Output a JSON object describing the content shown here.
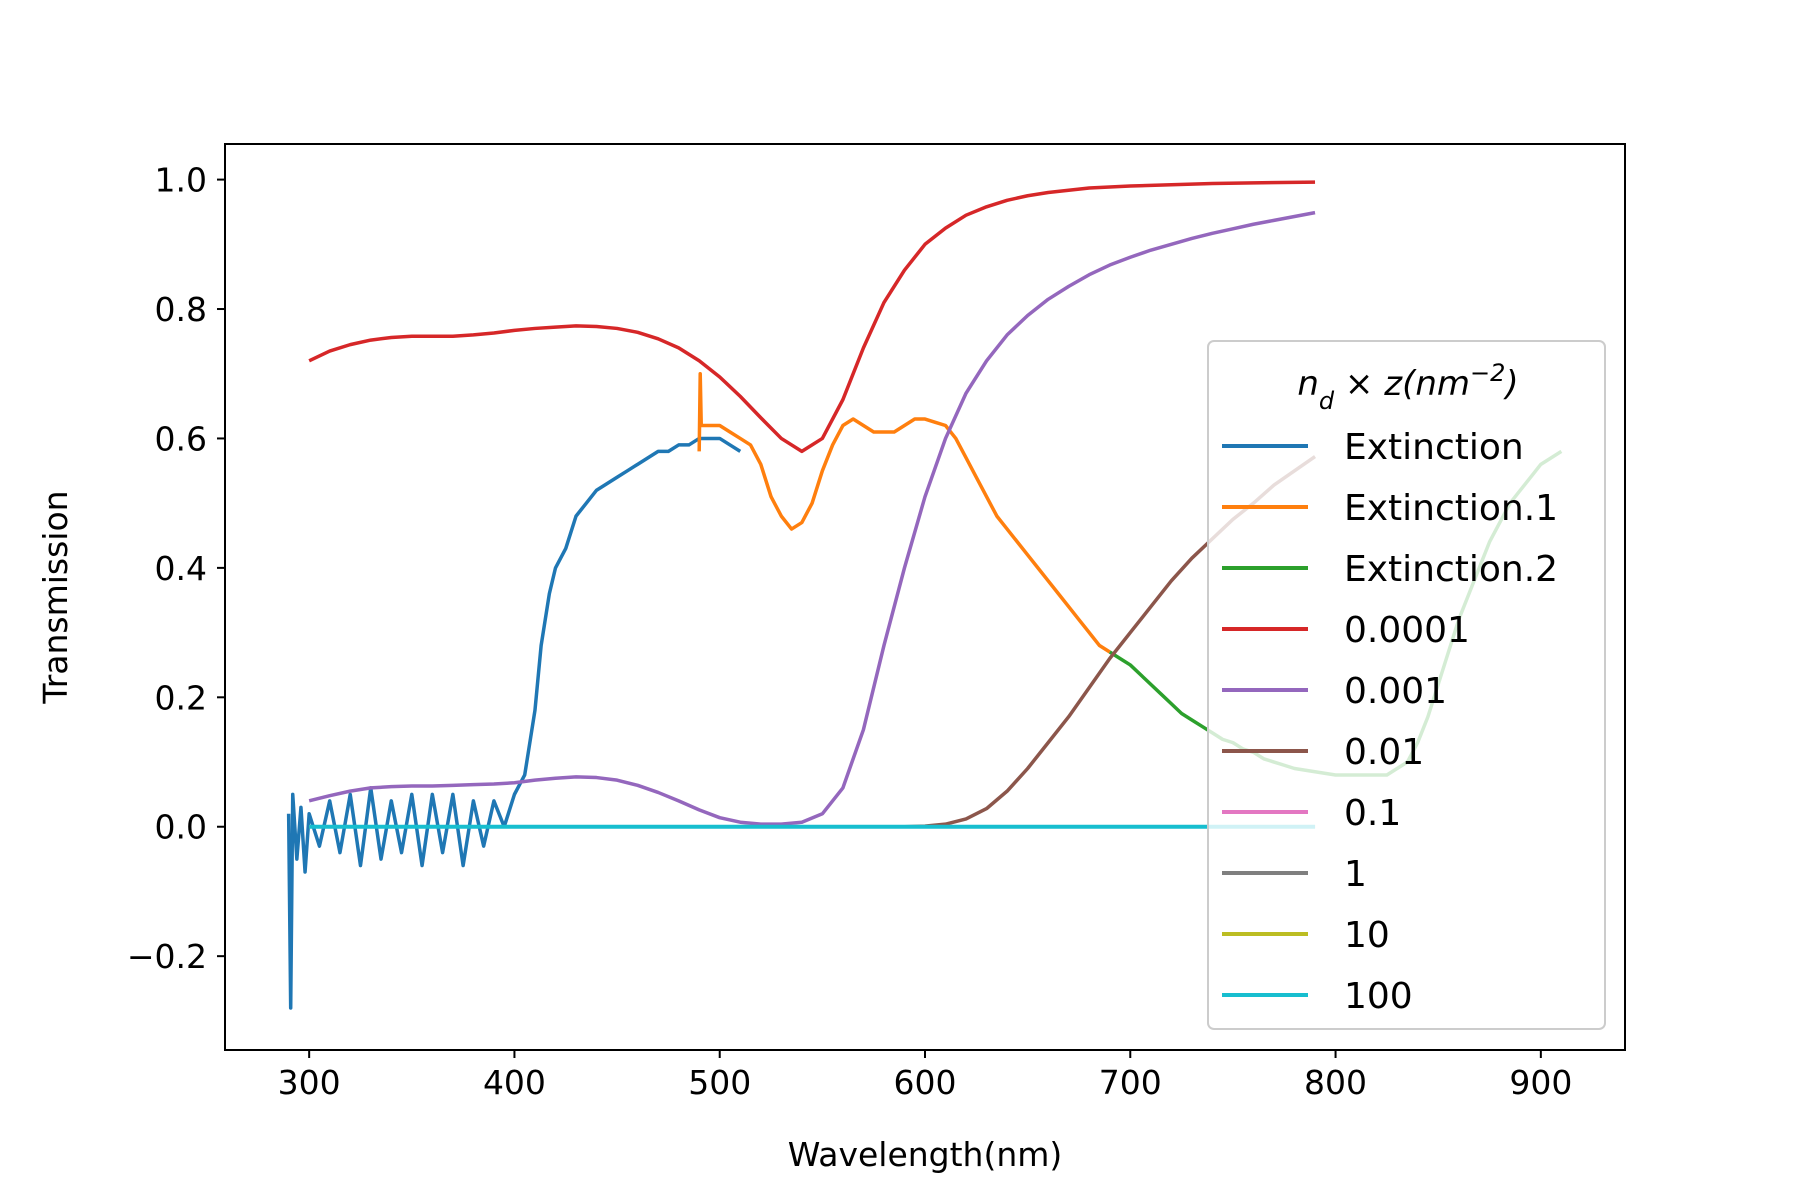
{
  "chart_data": {
    "type": "line",
    "title": "",
    "xlabel": "Wavelength(nm)",
    "ylabel": "Transmission",
    "xlim": [
      259,
      941
    ],
    "ylim": [
      -0.345,
      1.055
    ],
    "grid": false,
    "legend": {
      "title": "n_d × z(nm^-2)",
      "placement": "right"
    },
    "x_ticks": [
      {
        "value": 300,
        "label": "300"
      },
      {
        "value": 400,
        "label": "400"
      },
      {
        "value": 500,
        "label": "500"
      },
      {
        "value": 600,
        "label": "600"
      },
      {
        "value": 700,
        "label": "700"
      },
      {
        "value": 800,
        "label": "800"
      },
      {
        "value": 900,
        "label": "900"
      }
    ],
    "y_ticks": [
      {
        "value": -0.2,
        "label": "−0.2"
      },
      {
        "value": 0.0,
        "label": "0.0"
      },
      {
        "value": 0.2,
        "label": "0.2"
      },
      {
        "value": 0.4,
        "label": "0.4"
      },
      {
        "value": 0.6,
        "label": "0.6"
      },
      {
        "value": 0.8,
        "label": "0.8"
      },
      {
        "value": 1.0,
        "label": "1.0"
      }
    ],
    "series": [
      {
        "name": "Extinction",
        "color": "#1f77b4",
        "points": [
          [
            290,
            0.02
          ],
          [
            291,
            -0.28
          ],
          [
            292,
            0.05
          ],
          [
            294,
            -0.05
          ],
          [
            296,
            0.03
          ],
          [
            298,
            -0.07
          ],
          [
            300,
            0.02
          ],
          [
            305,
            -0.03
          ],
          [
            310,
            0.04
          ],
          [
            315,
            -0.04
          ],
          [
            320,
            0.05
          ],
          [
            325,
            -0.06
          ],
          [
            330,
            0.06
          ],
          [
            335,
            -0.05
          ],
          [
            340,
            0.04
          ],
          [
            345,
            -0.04
          ],
          [
            350,
            0.05
          ],
          [
            355,
            -0.06
          ],
          [
            360,
            0.05
          ],
          [
            365,
            -0.04
          ],
          [
            370,
            0.05
          ],
          [
            375,
            -0.06
          ],
          [
            380,
            0.04
          ],
          [
            385,
            -0.03
          ],
          [
            390,
            0.04
          ],
          [
            395,
            0.0
          ],
          [
            400,
            0.05
          ],
          [
            405,
            0.08
          ],
          [
            410,
            0.18
          ],
          [
            413,
            0.28
          ],
          [
            417,
            0.36
          ],
          [
            420,
            0.4
          ],
          [
            425,
            0.43
          ],
          [
            430,
            0.48
          ],
          [
            435,
            0.5
          ],
          [
            440,
            0.52
          ],
          [
            445,
            0.53
          ],
          [
            450,
            0.54
          ],
          [
            455,
            0.55
          ],
          [
            460,
            0.56
          ],
          [
            465,
            0.57
          ],
          [
            470,
            0.58
          ],
          [
            475,
            0.58
          ],
          [
            480,
            0.59
          ],
          [
            485,
            0.59
          ],
          [
            490,
            0.6
          ],
          [
            495,
            0.6
          ],
          [
            500,
            0.6
          ],
          [
            505,
            0.59
          ],
          [
            510,
            0.58
          ]
        ]
      },
      {
        "name": "Extinction.1",
        "color": "#ff7f0e",
        "points": [
          [
            490,
            0.58
          ],
          [
            490.5,
            0.7
          ],
          [
            491,
            0.62
          ],
          [
            495,
            0.62
          ],
          [
            500,
            0.62
          ],
          [
            505,
            0.61
          ],
          [
            510,
            0.6
          ],
          [
            515,
            0.59
          ],
          [
            520,
            0.56
          ],
          [
            525,
            0.51
          ],
          [
            530,
            0.48
          ],
          [
            535,
            0.46
          ],
          [
            540,
            0.47
          ],
          [
            545,
            0.5
          ],
          [
            550,
            0.55
          ],
          [
            555,
            0.59
          ],
          [
            560,
            0.62
          ],
          [
            565,
            0.63
          ],
          [
            570,
            0.62
          ],
          [
            575,
            0.61
          ],
          [
            580,
            0.61
          ],
          [
            585,
            0.61
          ],
          [
            590,
            0.62
          ],
          [
            595,
            0.63
          ],
          [
            600,
            0.63
          ],
          [
            605,
            0.625
          ],
          [
            610,
            0.62
          ],
          [
            615,
            0.6
          ],
          [
            620,
            0.57
          ],
          [
            625,
            0.54
          ],
          [
            630,
            0.51
          ],
          [
            635,
            0.48
          ],
          [
            640,
            0.46
          ],
          [
            645,
            0.44
          ],
          [
            650,
            0.42
          ],
          [
            655,
            0.4
          ],
          [
            660,
            0.38
          ],
          [
            665,
            0.36
          ],
          [
            670,
            0.34
          ],
          [
            675,
            0.32
          ],
          [
            680,
            0.3
          ],
          [
            685,
            0.28
          ],
          [
            690,
            0.27
          ]
        ]
      },
      {
        "name": "Extinction.2",
        "color": "#2ca02c",
        "points": [
          [
            690,
            0.27
          ],
          [
            695,
            0.26
          ],
          [
            700,
            0.25
          ],
          [
            705,
            0.235
          ],
          [
            710,
            0.22
          ],
          [
            715,
            0.205
          ],
          [
            720,
            0.19
          ],
          [
            725,
            0.175
          ],
          [
            730,
            0.165
          ],
          [
            735,
            0.155
          ],
          [
            740,
            0.145
          ],
          [
            745,
            0.135
          ],
          [
            750,
            0.13
          ],
          [
            755,
            0.12
          ],
          [
            760,
            0.115
          ],
          [
            765,
            0.105
          ],
          [
            770,
            0.1
          ],
          [
            775,
            0.095
          ],
          [
            780,
            0.09
          ],
          [
            790,
            0.085
          ],
          [
            800,
            0.08
          ],
          [
            810,
            0.08
          ],
          [
            820,
            0.08
          ],
          [
            825,
            0.08
          ],
          [
            830,
            0.09
          ],
          [
            835,
            0.1
          ],
          [
            840,
            0.13
          ],
          [
            845,
            0.17
          ],
          [
            850,
            0.22
          ],
          [
            855,
            0.27
          ],
          [
            860,
            0.32
          ],
          [
            865,
            0.36
          ],
          [
            870,
            0.4
          ],
          [
            875,
            0.44
          ],
          [
            880,
            0.47
          ],
          [
            885,
            0.5
          ],
          [
            890,
            0.52
          ],
          [
            895,
            0.54
          ],
          [
            900,
            0.56
          ],
          [
            905,
            0.57
          ],
          [
            910,
            0.58
          ]
        ]
      },
      {
        "name": "0.0001",
        "color": "#d62728",
        "points": [
          [
            300,
            0.72
          ],
          [
            310,
            0.735
          ],
          [
            320,
            0.745
          ],
          [
            330,
            0.752
          ],
          [
            340,
            0.756
          ],
          [
            350,
            0.758
          ],
          [
            360,
            0.758
          ],
          [
            370,
            0.758
          ],
          [
            380,
            0.76
          ],
          [
            390,
            0.763
          ],
          [
            400,
            0.767
          ],
          [
            410,
            0.77
          ],
          [
            420,
            0.772
          ],
          [
            430,
            0.774
          ],
          [
            440,
            0.773
          ],
          [
            450,
            0.77
          ],
          [
            460,
            0.764
          ],
          [
            470,
            0.754
          ],
          [
            480,
            0.74
          ],
          [
            490,
            0.72
          ],
          [
            500,
            0.695
          ],
          [
            510,
            0.665
          ],
          [
            520,
            0.632
          ],
          [
            530,
            0.6
          ],
          [
            540,
            0.58
          ],
          [
            550,
            0.6
          ],
          [
            560,
            0.66
          ],
          [
            570,
            0.74
          ],
          [
            580,
            0.81
          ],
          [
            590,
            0.86
          ],
          [
            600,
            0.9
          ],
          [
            610,
            0.925
          ],
          [
            620,
            0.945
          ],
          [
            630,
            0.958
          ],
          [
            640,
            0.968
          ],
          [
            650,
            0.975
          ],
          [
            660,
            0.98
          ],
          [
            680,
            0.987
          ],
          [
            700,
            0.99
          ],
          [
            720,
            0.992
          ],
          [
            740,
            0.994
          ],
          [
            760,
            0.995
          ],
          [
            790,
            0.996
          ]
        ]
      },
      {
        "name": "0.001",
        "color": "#9467bd",
        "points": [
          [
            300,
            0.04
          ],
          [
            310,
            0.048
          ],
          [
            320,
            0.055
          ],
          [
            330,
            0.06
          ],
          [
            340,
            0.062
          ],
          [
            350,
            0.063
          ],
          [
            360,
            0.063
          ],
          [
            370,
            0.064
          ],
          [
            380,
            0.065
          ],
          [
            390,
            0.066
          ],
          [
            400,
            0.068
          ],
          [
            410,
            0.072
          ],
          [
            420,
            0.075
          ],
          [
            430,
            0.077
          ],
          [
            440,
            0.076
          ],
          [
            450,
            0.072
          ],
          [
            460,
            0.064
          ],
          [
            470,
            0.053
          ],
          [
            480,
            0.04
          ],
          [
            490,
            0.026
          ],
          [
            500,
            0.014
          ],
          [
            510,
            0.007
          ],
          [
            520,
            0.004
          ],
          [
            530,
            0.004
          ],
          [
            540,
            0.007
          ],
          [
            550,
            0.02
          ],
          [
            560,
            0.06
          ],
          [
            570,
            0.15
          ],
          [
            580,
            0.28
          ],
          [
            590,
            0.4
          ],
          [
            600,
            0.51
          ],
          [
            610,
            0.6
          ],
          [
            620,
            0.67
          ],
          [
            630,
            0.72
          ],
          [
            640,
            0.76
          ],
          [
            650,
            0.79
          ],
          [
            660,
            0.815
          ],
          [
            670,
            0.835
          ],
          [
            680,
            0.853
          ],
          [
            690,
            0.868
          ],
          [
            700,
            0.88
          ],
          [
            710,
            0.891
          ],
          [
            720,
            0.9
          ],
          [
            730,
            0.909
          ],
          [
            740,
            0.917
          ],
          [
            750,
            0.924
          ],
          [
            760,
            0.931
          ],
          [
            770,
            0.937
          ],
          [
            780,
            0.943
          ],
          [
            790,
            0.949
          ]
        ]
      },
      {
        "name": "0.01",
        "color": "#8c564b",
        "points": [
          [
            300,
            0.0
          ],
          [
            500,
            0.0
          ],
          [
            580,
            0.0
          ],
          [
            590,
            0.0
          ],
          [
            600,
            0.001
          ],
          [
            610,
            0.004
          ],
          [
            620,
            0.012
          ],
          [
            630,
            0.028
          ],
          [
            640,
            0.055
          ],
          [
            650,
            0.09
          ],
          [
            660,
            0.13
          ],
          [
            670,
            0.17
          ],
          [
            680,
            0.215
          ],
          [
            690,
            0.26
          ],
          [
            700,
            0.3
          ],
          [
            710,
            0.34
          ],
          [
            720,
            0.38
          ],
          [
            730,
            0.415
          ],
          [
            740,
            0.445
          ],
          [
            750,
            0.475
          ],
          [
            760,
            0.5
          ],
          [
            770,
            0.528
          ],
          [
            780,
            0.55
          ],
          [
            790,
            0.572
          ]
        ]
      },
      {
        "name": "0.1",
        "color": "#e377c2",
        "points": [
          [
            300,
            0.0
          ],
          [
            790,
            0.0
          ]
        ]
      },
      {
        "name": "1",
        "color": "#7f7f7f",
        "points": [
          [
            300,
            0.0
          ],
          [
            790,
            0.0
          ]
        ]
      },
      {
        "name": "10",
        "color": "#bcbd22",
        "points": [
          [
            300,
            0.0
          ],
          [
            790,
            0.0
          ]
        ]
      },
      {
        "name": "100",
        "color": "#17becf",
        "points": [
          [
            300,
            0.0
          ],
          [
            790,
            0.0
          ]
        ]
      }
    ]
  },
  "legend_title_parts": {
    "base": "n",
    "subscript": "d",
    "middle": " × z(nm",
    "superscript": "−2",
    "end": ")"
  }
}
